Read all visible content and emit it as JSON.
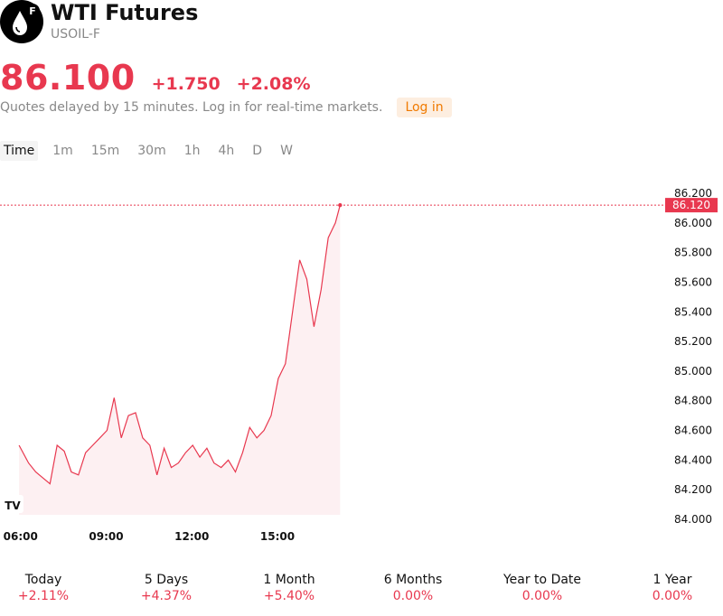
{
  "header": {
    "title": "WTI Futures",
    "ticker": "USOIL-F",
    "logo_badge": "F",
    "logo_icon": "oil-drop-icon"
  },
  "quote": {
    "price": "86.100",
    "change": "+1.750",
    "change_pct": "+2.08%",
    "delayed_note": "Quotes delayed by 15 minutes. Log in for real-time markets.",
    "login_label": "Log in"
  },
  "intervals": [
    "Time",
    "1m",
    "15m",
    "30m",
    "1h",
    "4h",
    "D",
    "W"
  ],
  "active_interval": "Time",
  "chart_data": {
    "type": "line",
    "y_axis_ticks": [
      "86.200",
      "86.000",
      "85.800",
      "85.600",
      "85.400",
      "85.200",
      "85.000",
      "84.800",
      "84.600",
      "84.400",
      "84.200",
      "84.000"
    ],
    "x_axis_ticks": [
      "06:00",
      "09:00",
      "12:00",
      "15:00"
    ],
    "ylim": [
      84.0,
      86.2
    ],
    "current_price_label": "86.120",
    "watermark": "TV",
    "series": [
      {
        "color": "#e8384f",
        "x": [
          "05:55",
          "06:15",
          "06:30",
          "06:45",
          "07:00",
          "07:15",
          "07:30",
          "07:45",
          "08:00",
          "08:15",
          "08:30",
          "08:45",
          "09:00",
          "09:15",
          "09:30",
          "09:45",
          "10:00",
          "10:15",
          "10:30",
          "10:45",
          "11:00",
          "11:15",
          "11:30",
          "11:45",
          "12:00",
          "12:15",
          "12:30",
          "12:45",
          "13:00",
          "13:15",
          "13:30",
          "13:45",
          "14:00",
          "14:15",
          "14:30",
          "14:45",
          "15:00",
          "15:15",
          "15:30",
          "15:45",
          "16:00",
          "16:15",
          "16:30",
          "16:45",
          "17:00",
          "17:10"
        ],
        "values": [
          84.5,
          84.38,
          84.32,
          84.28,
          84.24,
          84.5,
          84.46,
          84.32,
          84.3,
          84.45,
          84.5,
          84.55,
          84.6,
          84.82,
          84.55,
          84.7,
          84.72,
          84.55,
          84.5,
          84.3,
          84.48,
          84.35,
          84.38,
          84.45,
          84.5,
          84.42,
          84.48,
          84.38,
          84.35,
          84.4,
          84.32,
          84.45,
          84.62,
          84.55,
          84.6,
          84.7,
          84.95,
          85.05,
          85.4,
          85.75,
          85.62,
          85.3,
          85.55,
          85.9,
          86.0,
          86.12
        ]
      }
    ],
    "area_fill": "#fdf0f2"
  },
  "periods": [
    {
      "label": "Today",
      "value": "+2.11%"
    },
    {
      "label": "5 Days",
      "value": "+4.37%"
    },
    {
      "label": "1 Month",
      "value": "+5.40%"
    },
    {
      "label": "6 Months",
      "value": "0.00%"
    },
    {
      "label": "Year to Date",
      "value": "0.00%"
    },
    {
      "label": "1 Year",
      "value": "0.00%"
    }
  ],
  "colors": {
    "accent": "#e8384f",
    "login_bg": "#fdeee0",
    "login_text": "#f07a00"
  }
}
